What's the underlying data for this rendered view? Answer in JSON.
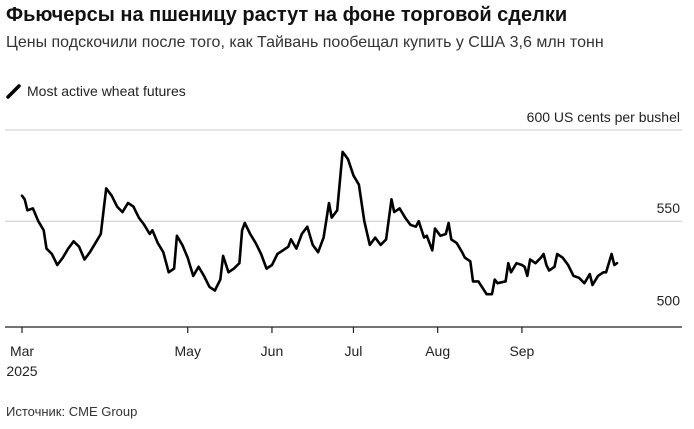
{
  "header": {
    "title": "Фьючерсы на пшеницу растут на фоне торговой сделки",
    "subtitle": "Цены подскочили после того, как Тайвань пообещал купить у США 3,6 млн тонн"
  },
  "legend": {
    "label": "Most active wheat futures",
    "color": "#000000"
  },
  "footer": {
    "source": "Источник: CME Group"
  },
  "chart_data": {
    "type": "line",
    "title": "Фьючерсы на пшеницу растут на фоне торговой сделки",
    "subtitle": "Цены подскочили после того, как Тайвань пообещал купить у США 3,6 млн тонн",
    "ylabel": "600 US cents per bushel",
    "ylim": [
      492,
      600
    ],
    "y_axis_side": "right",
    "grid": true,
    "legend_position": "top-left",
    "yticks": [
      {
        "value": 600,
        "label": "600 US cents per bushel"
      },
      {
        "value": 550,
        "label": "550"
      },
      {
        "value": 500,
        "label": "500"
      }
    ],
    "xticks": [
      {
        "date": "2025-03-01",
        "label": "Mar",
        "sublabel": "2025"
      },
      {
        "date": "2025-05-01",
        "label": "May"
      },
      {
        "date": "2025-06-01",
        "label": "Jun"
      },
      {
        "date": "2025-07-01",
        "label": "Jul"
      },
      {
        "date": "2025-08-01",
        "label": "Aug"
      },
      {
        "date": "2025-09-01",
        "label": "Sep"
      }
    ],
    "xlim": [
      "2025-02-26",
      "2025-10-08"
    ],
    "series": [
      {
        "name": "Most active wheat futures",
        "color": "#000000",
        "points": [
          [
            "2025-03-01",
            564
          ],
          [
            "2025-03-02",
            562
          ],
          [
            "2025-03-03",
            556
          ],
          [
            "2025-03-05",
            557
          ],
          [
            "2025-03-07",
            550
          ],
          [
            "2025-03-09",
            545
          ],
          [
            "2025-03-10",
            535
          ],
          [
            "2025-03-12",
            532
          ],
          [
            "2025-03-14",
            526
          ],
          [
            "2025-03-16",
            530
          ],
          [
            "2025-03-18",
            535
          ],
          [
            "2025-03-20",
            539
          ],
          [
            "2025-03-22",
            536
          ],
          [
            "2025-03-24",
            529
          ],
          [
            "2025-03-26",
            533
          ],
          [
            "2025-03-28",
            538
          ],
          [
            "2025-03-30",
            543
          ],
          [
            "2025-04-01",
            568
          ],
          [
            "2025-04-03",
            564
          ],
          [
            "2025-04-05",
            558
          ],
          [
            "2025-04-07",
            555
          ],
          [
            "2025-04-09",
            560
          ],
          [
            "2025-04-11",
            558
          ],
          [
            "2025-04-13",
            552
          ],
          [
            "2025-04-15",
            548
          ],
          [
            "2025-04-17",
            543
          ],
          [
            "2025-04-18",
            545
          ],
          [
            "2025-04-20",
            538
          ],
          [
            "2025-04-22",
            533
          ],
          [
            "2025-04-24",
            522
          ],
          [
            "2025-04-26",
            524
          ],
          [
            "2025-04-27",
            542
          ],
          [
            "2025-04-29",
            537
          ],
          [
            "2025-05-01",
            530
          ],
          [
            "2025-05-03",
            520
          ],
          [
            "2025-05-05",
            525
          ],
          [
            "2025-05-07",
            520
          ],
          [
            "2025-05-09",
            514
          ],
          [
            "2025-05-11",
            512
          ],
          [
            "2025-05-13",
            518
          ],
          [
            "2025-05-14",
            531
          ],
          [
            "2025-05-16",
            522
          ],
          [
            "2025-05-18",
            524
          ],
          [
            "2025-05-20",
            527
          ],
          [
            "2025-05-21",
            545
          ],
          [
            "2025-05-22",
            549
          ],
          [
            "2025-05-24",
            543
          ],
          [
            "2025-05-26",
            538
          ],
          [
            "2025-05-28",
            532
          ],
          [
            "2025-05-30",
            524
          ],
          [
            "2025-06-01",
            526
          ],
          [
            "2025-06-03",
            532
          ],
          [
            "2025-06-05",
            534
          ],
          [
            "2025-06-07",
            536
          ],
          [
            "2025-06-08",
            540
          ],
          [
            "2025-06-10",
            535
          ],
          [
            "2025-06-12",
            543
          ],
          [
            "2025-06-14",
            547
          ],
          [
            "2025-06-16",
            537
          ],
          [
            "2025-06-18",
            533
          ],
          [
            "2025-06-20",
            541
          ],
          [
            "2025-06-22",
            560
          ],
          [
            "2025-06-23",
            552
          ],
          [
            "2025-06-25",
            556
          ],
          [
            "2025-06-27",
            588
          ],
          [
            "2025-06-29",
            584
          ],
          [
            "2025-07-01",
            575
          ],
          [
            "2025-07-03",
            570
          ],
          [
            "2025-07-05",
            550
          ],
          [
            "2025-07-07",
            537
          ],
          [
            "2025-07-09",
            541
          ],
          [
            "2025-07-11",
            537
          ],
          [
            "2025-07-13",
            540
          ],
          [
            "2025-07-15",
            562
          ],
          [
            "2025-07-16",
            555
          ],
          [
            "2025-07-18",
            557
          ],
          [
            "2025-07-20",
            552
          ],
          [
            "2025-07-22",
            548
          ],
          [
            "2025-07-24",
            547
          ],
          [
            "2025-07-25",
            550
          ],
          [
            "2025-07-27",
            541
          ],
          [
            "2025-07-28",
            542
          ],
          [
            "2025-07-30",
            534
          ],
          [
            "2025-07-31",
            546
          ],
          [
            "2025-08-02",
            542
          ],
          [
            "2025-08-04",
            543
          ],
          [
            "2025-08-05",
            549
          ],
          [
            "2025-08-06",
            540
          ],
          [
            "2025-08-08",
            538
          ],
          [
            "2025-08-10",
            533
          ],
          [
            "2025-08-11",
            530
          ],
          [
            "2025-08-13",
            528
          ],
          [
            "2025-08-14",
            517
          ],
          [
            "2025-08-16",
            517
          ],
          [
            "2025-08-19",
            510
          ],
          [
            "2025-08-21",
            510
          ],
          [
            "2025-08-22",
            518
          ],
          [
            "2025-08-23",
            516
          ],
          [
            "2025-08-26",
            517
          ],
          [
            "2025-08-27",
            527
          ],
          [
            "2025-08-28",
            522
          ],
          [
            "2025-08-30",
            527
          ],
          [
            "2025-09-01",
            526
          ],
          [
            "2025-09-02",
            525
          ],
          [
            "2025-09-03",
            520
          ],
          [
            "2025-09-04",
            529
          ],
          [
            "2025-09-06",
            527
          ],
          [
            "2025-09-08",
            530
          ],
          [
            "2025-09-09",
            532
          ],
          [
            "2025-09-10",
            526
          ],
          [
            "2025-09-11",
            523
          ],
          [
            "2025-09-13",
            525
          ],
          [
            "2025-09-14",
            532
          ],
          [
            "2025-09-16",
            530
          ],
          [
            "2025-09-18",
            526
          ],
          [
            "2025-09-20",
            520
          ],
          [
            "2025-09-22",
            519
          ],
          [
            "2025-09-24",
            516
          ],
          [
            "2025-09-26",
            521
          ],
          [
            "2025-09-27",
            515
          ],
          [
            "2025-09-29",
            520
          ],
          [
            "2025-10-01",
            522
          ],
          [
            "2025-10-02",
            522
          ],
          [
            "2025-10-04",
            532
          ],
          [
            "2025-10-05",
            526
          ],
          [
            "2025-10-06",
            527
          ]
        ]
      }
    ]
  }
}
